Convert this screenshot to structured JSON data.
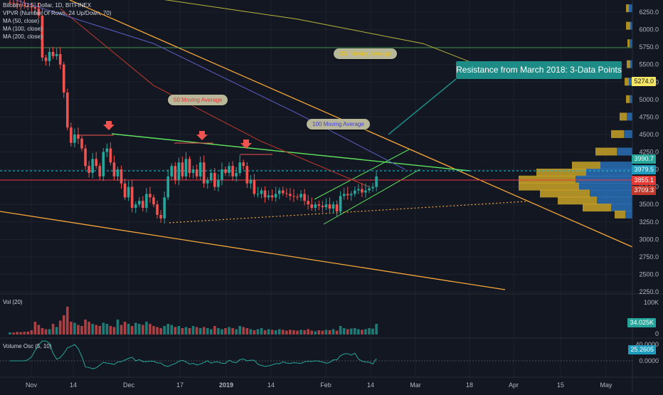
{
  "legends": {
    "symbol": "Bitcoin / U.S. Dollar, 1D, BITFINEX",
    "vpvr": "VPVR (Number Of Rows, 24 Up/Down, 70)",
    "ma50": "MA (50, close)",
    "ma100": "MA (100, close)",
    "ma200": "MA (200, close)",
    "vol": "Vol (20)",
    "osc": "Volume Osc (5, 10)"
  },
  "annotations": {
    "ma50": "50 Moving Average",
    "ma100": "100 Moving Average",
    "ma200": "200 Moving Average",
    "resistance": "Resistance from March 2018: 3-Data Points"
  },
  "price_tags": {
    "t5274": "5274.0",
    "t3990": "3990.7",
    "t3979": "3979.5",
    "t3855": "3855.1",
    "t3709": "3709.3",
    "vol_last": "34.025K",
    "osc_last": "25.2605"
  },
  "colors": {
    "background": "#131722",
    "up_candle": "#26a69a",
    "down_candle": "#ef5350",
    "trend_orange": "#f7a738",
    "trend_green": "#5ee35e",
    "ma50": "#c0392b",
    "ma100": "#5b5fc7",
    "ma200": "#b8b63c",
    "vpvr_up": "#2a6fb5",
    "vpvr_down": "#c9a227"
  },
  "chart_data": {
    "type": "candlestick",
    "y_axis_ticks": [
      "6250.0",
      "6000.0",
      "5750.0",
      "5500.0",
      "5250.0",
      "5000.0",
      "4750.0",
      "4500.0",
      "4250.0",
      "4000.0",
      "3750.0",
      "3500.0",
      "3250.0",
      "3000.0",
      "2750.0",
      "2500.0",
      "2250.0"
    ],
    "x_axis_ticks": [
      "Nov",
      "14",
      "Dec",
      "17",
      "2019",
      "14",
      "Feb",
      "14",
      "Mar",
      "18",
      "Apr",
      "15",
      "May"
    ],
    "vol_axis_ticks": [
      "100K",
      "0"
    ],
    "osc_axis_ticks": [
      "40.0000",
      "0.0000"
    ],
    "ylim": [
      2250,
      6400
    ],
    "closes": [
      6380,
      6370,
      6360,
      6350,
      6340,
      6330,
      6320,
      6300,
      6200,
      5600,
      5550,
      5680,
      5620,
      5650,
      5500,
      5100,
      4600,
      4380,
      4500,
      4440,
      4300,
      4050,
      3950,
      4150,
      4050,
      3900,
      4250,
      4300,
      4100,
      3900,
      4000,
      3800,
      3600,
      3750,
      3450,
      3500,
      3550,
      3450,
      3650,
      3600,
      3500,
      3350,
      3300,
      3600,
      3900,
      4050,
      3850,
      4100,
      3900,
      4150,
      3950,
      4000,
      3900,
      4100,
      3800,
      3850,
      3950,
      3750,
      3850,
      4000,
      3950,
      4050,
      3900,
      3950,
      4100,
      4050,
      3800,
      3850,
      3650,
      3650,
      3700,
      3600,
      3630,
      3600,
      3650,
      3700,
      3660,
      3650,
      3620,
      3610,
      3600,
      3650,
      3550,
      3500,
      3450,
      3500,
      3480,
      3460,
      3500,
      3440,
      3500,
      3400,
      3620,
      3650,
      3630,
      3650,
      3700,
      3720,
      3670,
      3700,
      3730,
      3750,
      3900
    ],
    "volume": [
      10,
      9,
      12,
      11,
      13,
      14,
      20,
      60,
      45,
      30,
      25,
      25,
      50,
      35,
      65,
      90,
      130,
      60,
      55,
      45,
      40,
      70,
      60,
      50,
      45,
      40,
      55,
      50,
      40,
      35,
      70,
      45,
      60,
      50,
      40,
      55,
      50,
      45,
      60,
      50,
      40,
      35,
      30,
      40,
      50,
      45,
      35,
      40,
      30,
      35,
      30,
      40,
      35,
      30,
      35,
      30,
      25,
      40,
      30,
      25,
      30,
      35,
      30,
      25,
      40,
      35,
      30,
      25,
      20,
      25,
      30,
      20,
      25,
      22,
      20,
      25,
      22,
      18,
      22,
      20,
      18,
      22,
      20,
      25,
      18,
      15,
      20,
      18,
      22,
      20,
      25,
      18,
      40,
      30,
      25,
      28,
      30,
      25,
      22,
      25,
      30,
      28,
      50
    ],
    "series": [
      {
        "name": "MA (50, close)",
        "points": [
          [
            14,
            6300
          ],
          [
            40,
            5200
          ],
          [
            70,
            4400
          ],
          [
            100,
            3750
          ]
        ]
      },
      {
        "name": "MA (100, close)",
        "points": [
          [
            0,
            6450
          ],
          [
            40,
            5800
          ],
          [
            80,
            4800
          ],
          [
            110,
            4000
          ]
        ]
      },
      {
        "name": "MA (200, close)",
        "points": [
          [
            40,
            6450
          ],
          [
            80,
            6150
          ],
          [
            115,
            5800
          ],
          [
            130,
            5500
          ]
        ]
      }
    ]
  }
}
